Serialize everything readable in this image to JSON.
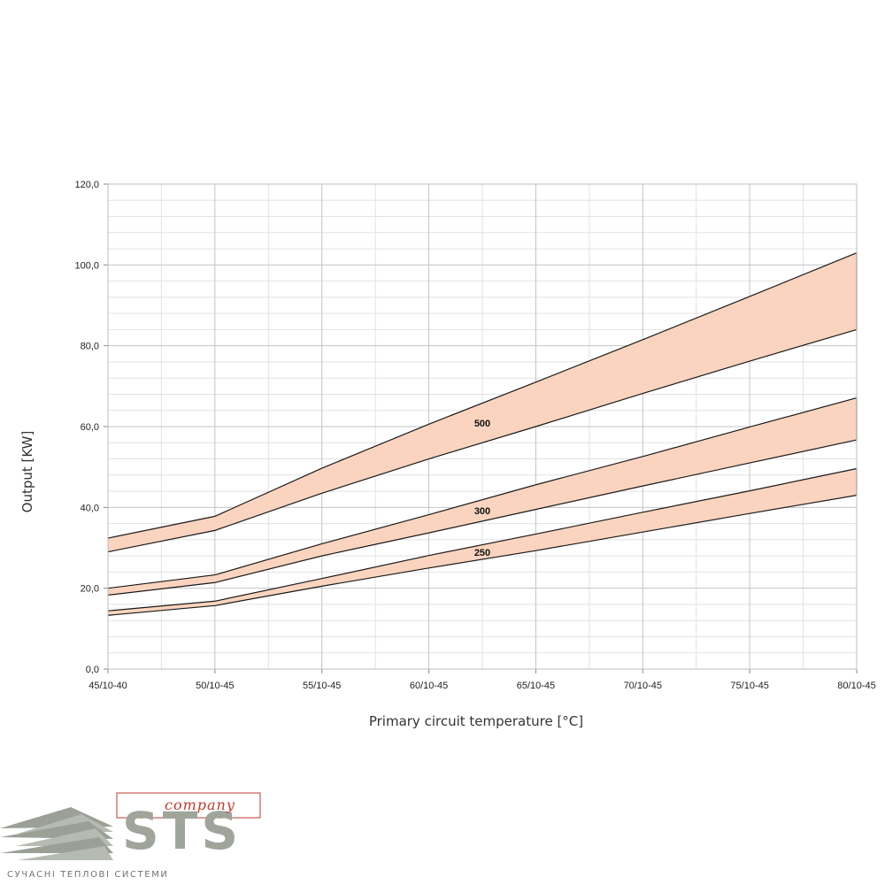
{
  "chart_data": {
    "type": "area",
    "xlabel": "Primary circuit temperature [°C]",
    "ylabel": "Output [KW]",
    "categories": [
      "45/10-40",
      "50/10-45",
      "55/10-45",
      "60/10-45",
      "65/10-45",
      "70/10-45",
      "75/10-45",
      "80/10-45"
    ],
    "y_ticks": [
      "0,0",
      "20,0",
      "40,0",
      "60,0",
      "80,0",
      "100,0",
      "120,0"
    ],
    "ylim": [
      0,
      120
    ],
    "grid": true,
    "bands": [
      {
        "label": "500",
        "label_at": 3.5,
        "lower": [
          29.0,
          34.3,
          43.5,
          52.0,
          60.0,
          68.2,
          76.2,
          84.0
        ],
        "upper": [
          32.4,
          37.8,
          49.7,
          60.6,
          71.0,
          81.5,
          92.2,
          103.0
        ]
      },
      {
        "label": "300",
        "label_at": 3.5,
        "lower": [
          18.3,
          21.4,
          28.0,
          33.7,
          39.5,
          45.3,
          51.0,
          56.7
        ],
        "upper": [
          20.0,
          23.3,
          31.0,
          38.2,
          45.6,
          52.6,
          59.9,
          67.1
        ]
      },
      {
        "label": "250",
        "label_at": 3.5,
        "lower": [
          13.3,
          15.7,
          20.5,
          25.0,
          29.3,
          33.9,
          38.5,
          43.0
        ],
        "upper": [
          14.4,
          16.8,
          22.4,
          28.1,
          33.4,
          38.8,
          44.1,
          49.6
        ]
      }
    ],
    "fill_color": "#fad4be",
    "line_color": "#1a1a1a"
  },
  "logo": {
    "brand": "STS",
    "company": "company",
    "tagline": "СУЧАСНІ ТЕПЛОВІ СИСТЕМИ",
    "text_color": "#9fa59b",
    "accent_color": "#c0392b"
  }
}
